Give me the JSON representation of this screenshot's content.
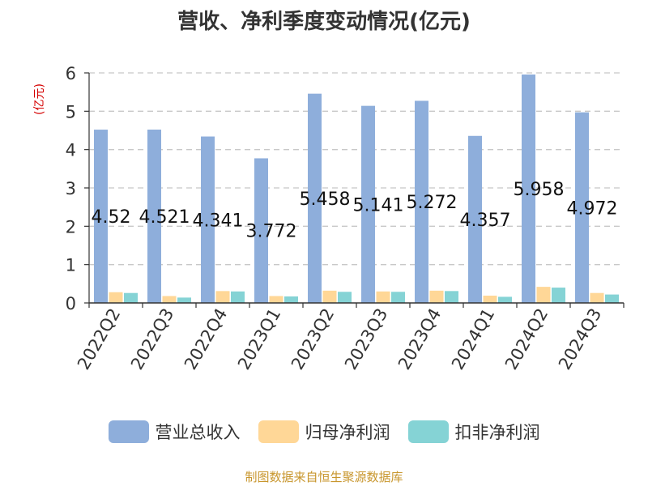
{
  "chart_data": {
    "type": "bar",
    "title": "营收、净利季度变动情况(亿元)",
    "ylabel": "(亿元)",
    "xlabel": "",
    "categories": [
      "2022Q2",
      "2022Q3",
      "2022Q4",
      "2023Q1",
      "2023Q2",
      "2023Q3",
      "2023Q4",
      "2024Q1",
      "2024Q2",
      "2024Q3"
    ],
    "series": [
      {
        "name": "营业总收入",
        "color": "#8eaedb",
        "values": [
          4.52,
          4.521,
          4.341,
          3.772,
          5.458,
          5.141,
          5.272,
          4.357,
          5.958,
          4.972
        ],
        "data_labels": [
          "4.52",
          "4.521",
          "4.341",
          "3.772",
          "5.458",
          "5.141",
          "5.272",
          "4.357",
          "5.958",
          "4.972"
        ]
      },
      {
        "name": "归母净利润",
        "color": "#ffd797",
        "values": [
          0.28,
          0.18,
          0.31,
          0.18,
          0.32,
          0.3,
          0.32,
          0.19,
          0.42,
          0.26
        ]
      },
      {
        "name": "扣非净利润",
        "color": "#85d3d5",
        "values": [
          0.26,
          0.14,
          0.3,
          0.17,
          0.29,
          0.29,
          0.31,
          0.16,
          0.4,
          0.22
        ]
      }
    ],
    "ylim": [
      0,
      6
    ],
    "yticks": [
      "0",
      "1",
      "2",
      "3",
      "4",
      "5",
      "6"
    ],
    "grid": true,
    "legend": "bottom"
  },
  "source": "制图数据来自恒生聚源数据库"
}
